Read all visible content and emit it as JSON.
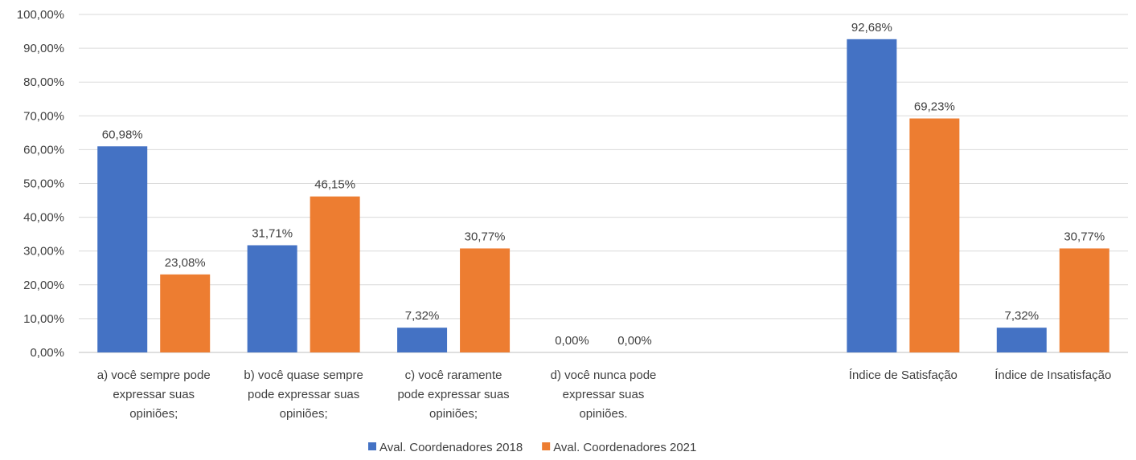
{
  "chart_data": {
    "type": "bar",
    "title": "",
    "xlabel": "",
    "ylabel": "",
    "ylim": [
      0,
      100
    ],
    "ytick_step": 10,
    "ytick_labels": [
      "0,00%",
      "10,00%",
      "20,00%",
      "30,00%",
      "40,00%",
      "50,00%",
      "60,00%",
      "70,00%",
      "80,00%",
      "90,00%",
      "100,00%"
    ],
    "grid": true,
    "legend_position": "bottom",
    "categories": [
      [
        "a) você sempre pode",
        "expressar suas",
        "opiniões;"
      ],
      [
        "b) você quase sempre",
        "pode expressar suas",
        "opiniões;"
      ],
      [
        "c) você raramente",
        "pode expressar suas",
        "opiniões;"
      ],
      [
        "d) você nunca pode",
        "expressar suas",
        "opiniões."
      ],
      [
        ""
      ],
      [
        "Índice de Satisfação"
      ],
      [
        "Índice de Insatisfação"
      ]
    ],
    "series": [
      {
        "name": "Aval. Coordenadores 2018",
        "color": "#4472c4",
        "values": [
          60.98,
          31.71,
          7.32,
          0.0,
          null,
          92.68,
          7.32
        ],
        "labels": [
          "60,98%",
          "31,71%",
          "7,32%",
          "0,00%",
          "",
          "92,68%",
          "7,32%"
        ]
      },
      {
        "name": "Aval. Coordenadores 2021",
        "color": "#ed7d31",
        "values": [
          23.08,
          46.15,
          30.77,
          0.0,
          null,
          69.23,
          30.77
        ],
        "labels": [
          "23,08%",
          "46,15%",
          "30,77%",
          "0,00%",
          "",
          "69,23%",
          "30,77%"
        ]
      }
    ]
  }
}
